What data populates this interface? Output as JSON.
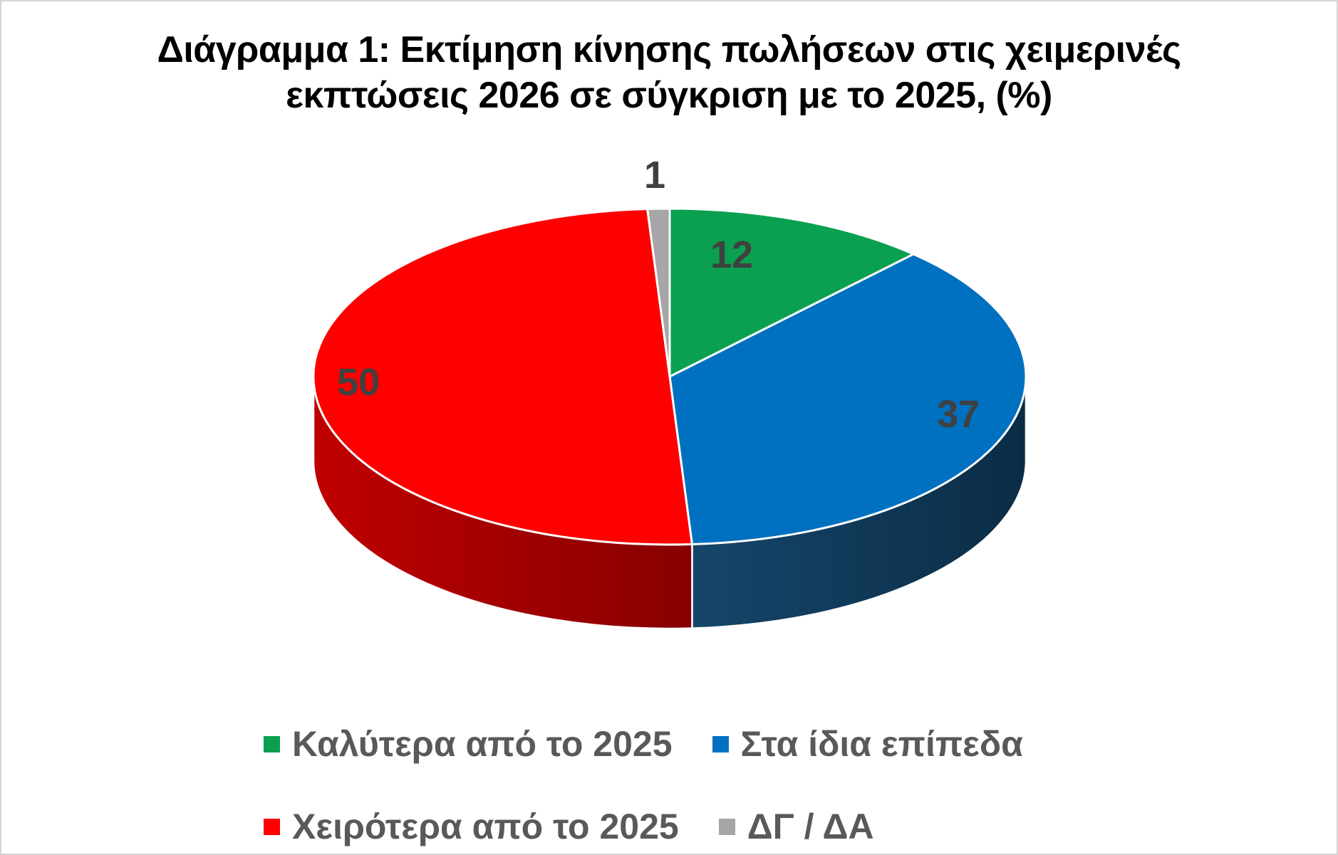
{
  "frame": {
    "background": "#ffffff",
    "border_color": "#d4d4d4"
  },
  "chart_data": {
    "type": "pie",
    "projection": "3d",
    "title": "Διάγραμμα 1: Εκτίμηση κίνησης πωλήσεων στις χειμερινές εκπτώσεις 2026 σε σύγκριση με το 2025, (%)",
    "title_lines": [
      "Διάγραμμα 1: Εκτίμηση κίνησης πωλήσεων στις χειμερινές",
      "εκπτώσεις 2026 σε σύγκριση με το 2025, (%)"
    ],
    "title_color": "#000000",
    "unit": "%",
    "start_angle_deg": 0,
    "direction": "clockwise",
    "categories": [
      "Καλύτερα από το 2025",
      "Στα ίδια επίπεδα",
      "Χειρότερα από το 2025",
      "ΔΓ / ΔΑ"
    ],
    "values": [
      12,
      37,
      50,
      1
    ],
    "colors": [
      "#0AA050",
      "#0070C0",
      "#FE0000",
      "#A6A6A6"
    ],
    "side_colors": [
      null,
      {
        "from": "#15466B",
        "to": "#0B2C45"
      },
      {
        "from": "#C00000",
        "to": "#860000"
      },
      null
    ],
    "data_label_color": "#404040",
    "legend_position": "bottom",
    "legend_text_color": "#595959",
    "legend_rows": [
      [
        0,
        1
      ],
      [
        2,
        3
      ]
    ]
  }
}
